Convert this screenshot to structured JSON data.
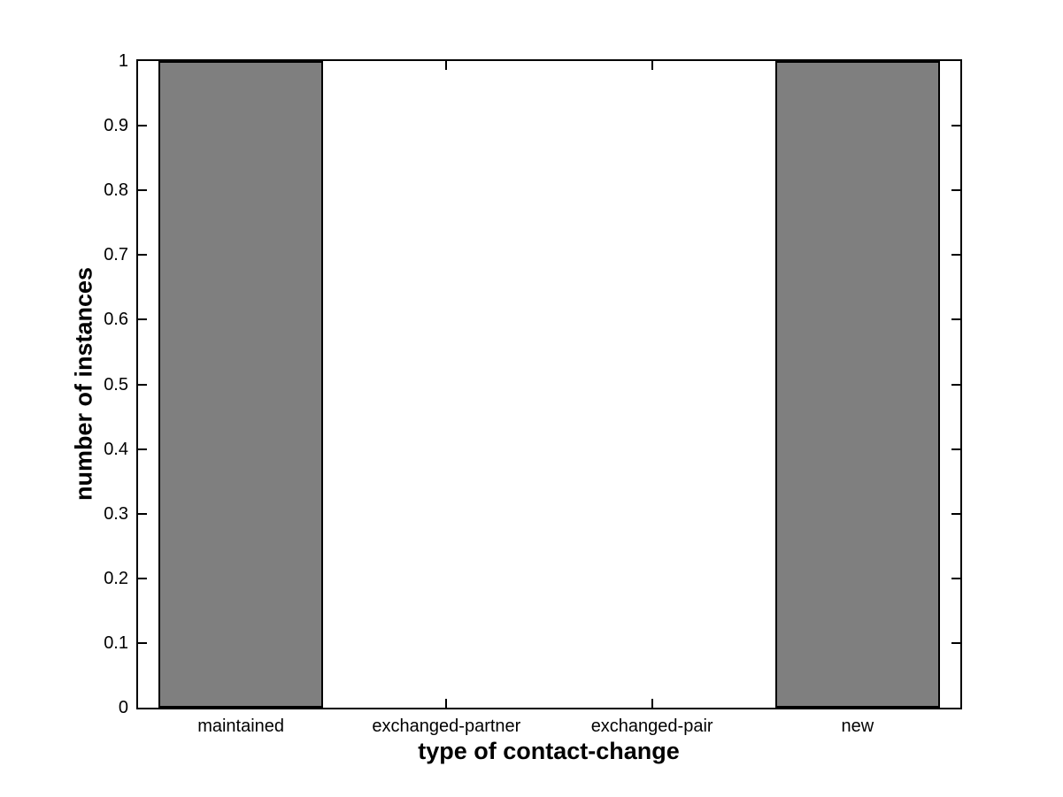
{
  "figure": {
    "background": "#ffffff",
    "axis_color": "#000000",
    "text_color": "#000000"
  },
  "chart_data": {
    "type": "bar",
    "title": "",
    "xlabel": "type of contact-change",
    "ylabel": "number of instances",
    "categories": [
      "maintained",
      "exchanged-partner",
      "exchanged-pair",
      "new"
    ],
    "values": [
      1,
      0,
      0,
      1
    ],
    "ylim": [
      0,
      1
    ],
    "yticks": [
      0,
      0.1,
      0.2,
      0.3,
      0.4,
      0.5,
      0.6,
      0.7,
      0.8,
      0.9,
      1
    ],
    "ytick_labels": [
      "0",
      "0.1",
      "0.2",
      "0.3",
      "0.4",
      "0.5",
      "0.6",
      "0.7",
      "0.8",
      "0.9",
      "1"
    ],
    "bar_color": "#7f7f7f",
    "bar_edge_color": "#000000",
    "bar_width_fraction": 0.8,
    "grid": false,
    "legend_position": "none"
  }
}
